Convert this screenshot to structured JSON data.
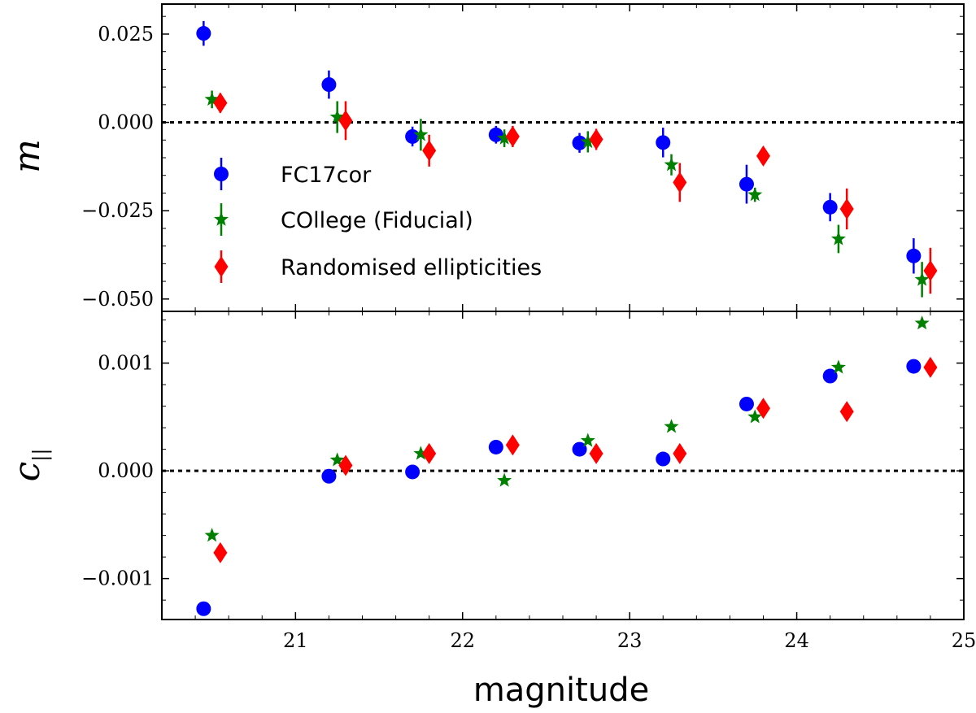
{
  "chart_data": [
    {
      "type": "scatter",
      "panel": "top",
      "ylabel": "m",
      "xlabel": "",
      "xlim": [
        20.2,
        25.0
      ],
      "ylim": [
        -0.0535,
        0.0335
      ],
      "yticks": [
        0.025,
        0.0,
        -0.025,
        -0.05
      ],
      "ytick_labels": [
        "0.025",
        "0.000",
        "−0.025",
        "−0.050"
      ],
      "reference_line": 0.0,
      "legend_position": "center-left",
      "series": [
        {
          "name": "FC17cor",
          "color": "#0000ff",
          "marker": "circle",
          "x": [
            20.45,
            21.2,
            21.7,
            22.2,
            22.7,
            23.2,
            23.7,
            24.2,
            24.7
          ],
          "y": [
            0.0252,
            0.0107,
            -0.004,
            -0.0035,
            -0.0058,
            -0.0057,
            -0.0175,
            -0.024,
            -0.0378
          ],
          "err": [
            0.0035,
            0.004,
            0.0028,
            0.0025,
            0.0028,
            0.0042,
            0.0055,
            0.004,
            0.005
          ]
        },
        {
          "name": "COllege (Fiducial)",
          "color": "#008000",
          "marker": "star",
          "x": [
            20.5,
            21.25,
            21.75,
            22.25,
            22.75,
            23.25,
            23.75,
            24.25,
            24.75
          ],
          "y": [
            0.0065,
            0.0015,
            -0.0035,
            -0.0045,
            -0.0055,
            -0.012,
            -0.0205,
            -0.033,
            -0.0445
          ],
          "err": [
            0.0025,
            0.0045,
            0.0045,
            0.0025,
            0.003,
            0.003,
            0.002,
            0.004,
            0.005
          ]
        },
        {
          "name": "Randomised ellipticities",
          "color": "#ff0000",
          "marker": "diamond",
          "x": [
            20.55,
            21.3,
            21.8,
            22.3,
            22.8,
            23.3,
            23.8,
            24.3,
            24.8
          ],
          "y": [
            0.0055,
            0.0005,
            -0.008,
            -0.004,
            -0.0048,
            -0.017,
            -0.0095,
            -0.0245,
            -0.042
          ],
          "err": [
            0.0028,
            0.0055,
            0.0045,
            0.003,
            0.003,
            0.0055,
            0.0025,
            0.0058,
            0.0065
          ]
        }
      ]
    },
    {
      "type": "scatter",
      "panel": "bottom",
      "ylabel": "c",
      "ylabel_subscript": "||",
      "xlabel": "magnitude",
      "xlim": [
        20.2,
        25.0
      ],
      "ylim": [
        -0.00138,
        0.00148
      ],
      "yticks": [
        0.001,
        0.0,
        -0.001
      ],
      "ytick_labels": [
        "0.001",
        "0.000",
        "−0.001"
      ],
      "xticks": [
        21,
        22,
        23,
        24,
        25
      ],
      "xtick_labels": [
        "21",
        "22",
        "23",
        "24",
        "25"
      ],
      "reference_line": 0.0,
      "series": [
        {
          "name": "FC17cor",
          "color": "#0000ff",
          "marker": "circle",
          "x": [
            20.45,
            21.2,
            21.7,
            22.2,
            22.7,
            23.2,
            23.7,
            24.2,
            24.7
          ],
          "y": [
            -0.00128,
            -5e-05,
            -1e-05,
            0.00022,
            0.0002,
            0.00011,
            0.00062,
            0.00088,
            0.00097
          ]
        },
        {
          "name": "COllege (Fiducial)",
          "color": "#008000",
          "marker": "star",
          "x": [
            20.5,
            21.25,
            21.75,
            22.25,
            22.75,
            23.25,
            23.75,
            24.25,
            24.75
          ],
          "y": [
            -0.0006,
            0.0001,
            0.00016,
            -9e-05,
            0.00028,
            0.00041,
            0.0005,
            0.00096,
            0.00137
          ]
        },
        {
          "name": "Randomised ellipticities",
          "color": "#ff0000",
          "marker": "diamond",
          "x": [
            20.55,
            21.3,
            21.8,
            22.3,
            22.8,
            23.3,
            23.8,
            24.3,
            24.8
          ],
          "y": [
            -0.00076,
            5e-05,
            0.00016,
            0.00024,
            0.00016,
            0.00016,
            0.00058,
            0.00055,
            0.00096
          ]
        }
      ]
    }
  ]
}
